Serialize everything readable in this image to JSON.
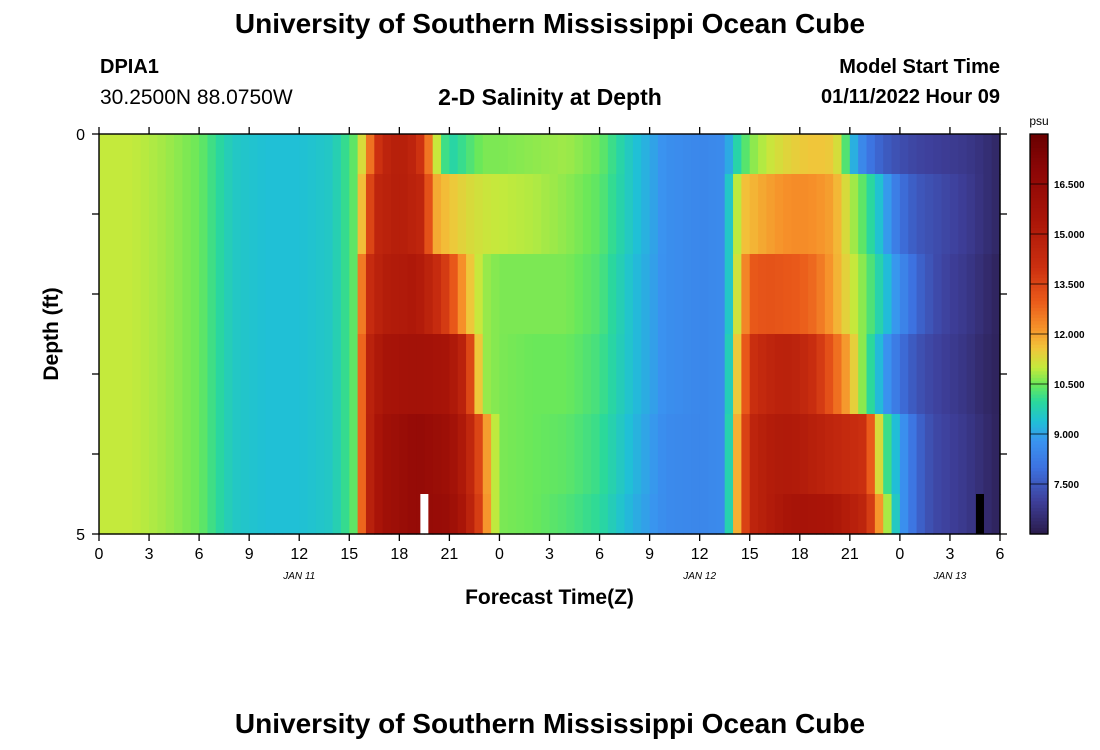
{
  "header": {
    "title": "University of Southern Mississippi Ocean Cube",
    "station": "DPIA1",
    "coords": "30.2500N  88.0750W",
    "subtitle": "2-D Salinity at Depth",
    "model_start_label": "Model Start Time",
    "model_start_value": "01/11/2022 Hour 09"
  },
  "footer": {
    "title": "University of Southern Mississippi Ocean Cube"
  },
  "chart_data": {
    "type": "heatmap",
    "title": "2-D Salinity at Depth",
    "xlabel": "Forecast Time(Z)",
    "ylabel": "Depth (ft)",
    "x_range_hours": [
      0,
      54
    ],
    "x_ticks": [
      "0",
      "3",
      "6",
      "9",
      "12",
      "15",
      "18",
      "21",
      "0",
      "3",
      "6",
      "9",
      "12",
      "15",
      "18",
      "21",
      "0",
      "3",
      "6"
    ],
    "date_labels": [
      {
        "label": "JAN 11",
        "hour": 12
      },
      {
        "label": "JAN 12",
        "hour": 36
      },
      {
        "label": "JAN 13",
        "hour": 51
      }
    ],
    "y_range": [
      0,
      5
    ],
    "y_ticks": [
      "0",
      "5"
    ],
    "depth_levels": [
      0,
      1,
      2,
      3,
      4,
      5
    ],
    "colorbar": {
      "unit": "psu",
      "range": [
        6.0,
        18.0
      ],
      "ticks": [
        "16.500",
        "15.000",
        "13.500",
        "12.000",
        "10.500",
        "9.000",
        "7.500"
      ],
      "stops": [
        {
          "v": 6.0,
          "c": "#2a1b4a"
        },
        {
          "v": 7.0,
          "c": "#3e3f9a"
        },
        {
          "v": 8.0,
          "c": "#3d72e0"
        },
        {
          "v": 8.8,
          "c": "#3a93f0"
        },
        {
          "v": 9.4,
          "c": "#20c0d6"
        },
        {
          "v": 10.0,
          "c": "#2bd99a"
        },
        {
          "v": 10.5,
          "c": "#6ae85a"
        },
        {
          "v": 11.0,
          "c": "#c4ea3c"
        },
        {
          "v": 11.6,
          "c": "#f2c43a"
        },
        {
          "v": 12.2,
          "c": "#f6912a"
        },
        {
          "v": 13.0,
          "c": "#ea5a1a"
        },
        {
          "v": 14.0,
          "c": "#cc3010"
        },
        {
          "v": 15.5,
          "c": "#a81408"
        },
        {
          "v": 17.0,
          "c": "#8a0606"
        },
        {
          "v": 18.0,
          "c": "#6a0000"
        }
      ]
    },
    "rows": [
      {
        "depth_range": [
          0,
          0.5
        ],
        "keys": [
          [
            0,
            11.0
          ],
          [
            2,
            11.0
          ],
          [
            4,
            10.8
          ],
          [
            6,
            10.5
          ],
          [
            8,
            9.6
          ],
          [
            10,
            9.4
          ],
          [
            12,
            9.4
          ],
          [
            14,
            9.6
          ],
          [
            15.4,
            10.5
          ],
          [
            16,
            11.8
          ],
          [
            16.5,
            13.5
          ],
          [
            17,
            14.5
          ],
          [
            18,
            15.0
          ],
          [
            19,
            14.5
          ],
          [
            19.6,
            13.2
          ],
          [
            20,
            11.6
          ],
          [
            20.5,
            10.5
          ],
          [
            21,
            9.8
          ],
          [
            22,
            10.2
          ],
          [
            23,
            10.6
          ],
          [
            24,
            10.6
          ],
          [
            26,
            10.7
          ],
          [
            28,
            10.8
          ],
          [
            30,
            10.5
          ],
          [
            32,
            9.5
          ],
          [
            34,
            8.7
          ],
          [
            36,
            8.5
          ],
          [
            37.5,
            8.6
          ],
          [
            38,
            9.6
          ],
          [
            39,
            10.6
          ],
          [
            40,
            11.0
          ],
          [
            41,
            11.3
          ],
          [
            42,
            11.5
          ],
          [
            43,
            11.6
          ],
          [
            44,
            11.5
          ],
          [
            44.6,
            10.8
          ],
          [
            45,
            9.5
          ],
          [
            46,
            8.2
          ],
          [
            47,
            7.6
          ],
          [
            48,
            7.3
          ],
          [
            49,
            7.1
          ],
          [
            50,
            7.0
          ],
          [
            51,
            6.9
          ],
          [
            52,
            6.8
          ],
          [
            53,
            6.6
          ],
          [
            54,
            6.3
          ]
        ]
      },
      {
        "depth_range": [
          0.5,
          1.5
        ],
        "keys": [
          [
            0,
            11.0
          ],
          [
            2,
            11.0
          ],
          [
            4,
            10.8
          ],
          [
            6,
            10.5
          ],
          [
            8,
            9.6
          ],
          [
            10,
            9.4
          ],
          [
            12,
            9.4
          ],
          [
            14,
            9.6
          ],
          [
            15.4,
            10.5
          ],
          [
            16,
            12.5
          ],
          [
            16.5,
            14.5
          ],
          [
            18,
            15.0
          ],
          [
            19.5,
            14.5
          ],
          [
            20,
            12.0
          ],
          [
            21,
            11.6
          ],
          [
            22,
            11.3
          ],
          [
            23,
            11.1
          ],
          [
            24,
            11.0
          ],
          [
            26,
            10.9
          ],
          [
            28,
            10.7
          ],
          [
            30,
            10.4
          ],
          [
            32,
            9.5
          ],
          [
            34,
            8.7
          ],
          [
            36,
            8.5
          ],
          [
            37.5,
            8.6
          ],
          [
            38,
            10.5
          ],
          [
            38.6,
            11.6
          ],
          [
            40,
            12.0
          ],
          [
            41,
            12.2
          ],
          [
            42,
            12.3
          ],
          [
            43,
            12.2
          ],
          [
            44,
            12.0
          ],
          [
            45,
            11.0
          ],
          [
            46,
            10.2
          ],
          [
            47,
            9.2
          ],
          [
            48,
            8.0
          ],
          [
            49,
            7.5
          ],
          [
            50,
            7.3
          ],
          [
            51,
            7.1
          ],
          [
            52,
            6.9
          ],
          [
            53,
            6.6
          ],
          [
            54,
            6.3
          ]
        ]
      },
      {
        "depth_range": [
          1.5,
          2.5
        ],
        "keys": [
          [
            0,
            11.0
          ],
          [
            2,
            11.0
          ],
          [
            4,
            10.8
          ],
          [
            6,
            10.5
          ],
          [
            8,
            9.6
          ],
          [
            10,
            9.4
          ],
          [
            12,
            9.4
          ],
          [
            14,
            9.6
          ],
          [
            15.4,
            10.5
          ],
          [
            16,
            14.0
          ],
          [
            17,
            15.0
          ],
          [
            19,
            15.3
          ],
          [
            20,
            14.5
          ],
          [
            21,
            13.5
          ],
          [
            22,
            11.8
          ],
          [
            23,
            10.8
          ],
          [
            24,
            10.6
          ],
          [
            26,
            10.6
          ],
          [
            28,
            10.6
          ],
          [
            30,
            10.3
          ],
          [
            32,
            9.4
          ],
          [
            34,
            8.7
          ],
          [
            36,
            8.5
          ],
          [
            37.5,
            8.6
          ],
          [
            38,
            10.5
          ],
          [
            38.6,
            12.0
          ],
          [
            39,
            13.0
          ],
          [
            40,
            13.2
          ],
          [
            41,
            13.1
          ],
          [
            42,
            13.0
          ],
          [
            43,
            12.7
          ],
          [
            44,
            12.0
          ],
          [
            45,
            11.2
          ],
          [
            46,
            10.5
          ],
          [
            47,
            9.6
          ],
          [
            48,
            8.6
          ],
          [
            49,
            7.8
          ],
          [
            50,
            7.3
          ],
          [
            51,
            7.0
          ],
          [
            52,
            6.8
          ],
          [
            53,
            6.5
          ],
          [
            54,
            6.2
          ]
        ]
      },
      {
        "depth_range": [
          2.5,
          3.5
        ],
        "keys": [
          [
            0,
            11.0
          ],
          [
            2,
            11.0
          ],
          [
            4,
            10.8
          ],
          [
            6,
            10.5
          ],
          [
            8,
            9.6
          ],
          [
            10,
            9.4
          ],
          [
            12,
            9.4
          ],
          [
            14,
            9.6
          ],
          [
            15.4,
            10.5
          ],
          [
            16,
            14.5
          ],
          [
            17,
            15.5
          ],
          [
            19,
            15.8
          ],
          [
            21,
            15.5
          ],
          [
            22,
            14.5
          ],
          [
            22.6,
            12.0
          ],
          [
            23,
            10.8
          ],
          [
            24,
            10.6
          ],
          [
            26,
            10.5
          ],
          [
            28,
            10.5
          ],
          [
            30,
            10.2
          ],
          [
            32,
            9.4
          ],
          [
            34,
            8.7
          ],
          [
            36,
            8.5
          ],
          [
            37.5,
            8.6
          ],
          [
            38,
            10.8
          ],
          [
            38.6,
            12.5
          ],
          [
            39,
            14.0
          ],
          [
            40,
            14.5
          ],
          [
            41,
            14.8
          ],
          [
            42,
            14.6
          ],
          [
            43,
            14.0
          ],
          [
            44,
            13.0
          ],
          [
            45,
            11.8
          ],
          [
            46,
            10.3
          ],
          [
            47,
            9.0
          ],
          [
            48,
            8.0
          ],
          [
            49,
            7.4
          ],
          [
            50,
            7.1
          ],
          [
            51,
            6.9
          ],
          [
            52,
            6.7
          ],
          [
            53,
            6.4
          ],
          [
            54,
            6.2
          ]
        ]
      },
      {
        "depth_range": [
          3.5,
          4.5
        ],
        "keys": [
          [
            0,
            11.0
          ],
          [
            2,
            11.0
          ],
          [
            4,
            10.8
          ],
          [
            6,
            10.5
          ],
          [
            8,
            9.6
          ],
          [
            10,
            9.4
          ],
          [
            12,
            9.4
          ],
          [
            14,
            9.6
          ],
          [
            15.4,
            10.5
          ],
          [
            16,
            14.5
          ],
          [
            17,
            15.8
          ],
          [
            19,
            16.5
          ],
          [
            21,
            16.0
          ],
          [
            22,
            15.0
          ],
          [
            23,
            13.0
          ],
          [
            23.4,
            11.5
          ],
          [
            24,
            10.6
          ],
          [
            26,
            10.5
          ],
          [
            28,
            10.4
          ],
          [
            30,
            10.1
          ],
          [
            32,
            9.3
          ],
          [
            34,
            8.6
          ],
          [
            36,
            8.5
          ],
          [
            37.5,
            8.6
          ],
          [
            38,
            11.0
          ],
          [
            38.6,
            13.0
          ],
          [
            39,
            14.5
          ],
          [
            40,
            15.0
          ],
          [
            41,
            15.2
          ],
          [
            42,
            15.1
          ],
          [
            43,
            14.8
          ],
          [
            46,
            14.0
          ],
          [
            46.5,
            12.0
          ],
          [
            47,
            10.5
          ],
          [
            48,
            9.0
          ],
          [
            49,
            7.8
          ],
          [
            50,
            7.2
          ],
          [
            51,
            7.0
          ],
          [
            52,
            6.8
          ],
          [
            53,
            6.5
          ],
          [
            54,
            6.2
          ]
        ]
      },
      {
        "depth_range": [
          4.5,
          5
        ],
        "keys": [
          [
            0,
            11.0
          ],
          [
            2,
            11.0
          ],
          [
            4,
            10.8
          ],
          [
            6,
            10.5
          ],
          [
            8,
            9.6
          ],
          [
            10,
            9.4
          ],
          [
            12,
            9.4
          ],
          [
            14,
            9.6
          ],
          [
            15.4,
            10.5
          ],
          [
            16,
            14.5
          ],
          [
            17,
            15.8
          ],
          [
            19,
            16.5
          ],
          [
            21,
            16.2
          ],
          [
            22,
            15.2
          ],
          [
            23,
            13.2
          ],
          [
            23.4,
            11.5
          ],
          [
            24,
            10.6
          ],
          [
            26,
            10.5
          ],
          [
            28,
            10.3
          ],
          [
            30,
            10.0
          ],
          [
            32,
            9.2
          ],
          [
            34,
            8.6
          ],
          [
            36,
            8.5
          ],
          [
            37.5,
            8.6
          ],
          [
            38,
            11.0
          ],
          [
            38.6,
            13.0
          ],
          [
            39,
            14.5
          ],
          [
            40,
            15.0
          ],
          [
            41,
            15.4
          ],
          [
            42,
            15.6
          ],
          [
            44,
            15.4
          ],
          [
            46,
            14.5
          ],
          [
            46.8,
            12.0
          ],
          [
            47.5,
            10.2
          ],
          [
            48,
            9.0
          ],
          [
            49,
            7.8
          ],
          [
            50,
            7.2
          ],
          [
            51,
            7.0
          ],
          [
            52,
            6.8
          ],
          [
            53,
            6.5
          ],
          [
            54,
            6.2
          ]
        ]
      }
    ],
    "markers": [
      {
        "hour": 19.5,
        "depth_range": [
          4.5,
          5
        ],
        "color": "#ffffff"
      },
      {
        "hour": 52.8,
        "depth_range": [
          4.5,
          5
        ],
        "color": "#000000"
      }
    ]
  }
}
